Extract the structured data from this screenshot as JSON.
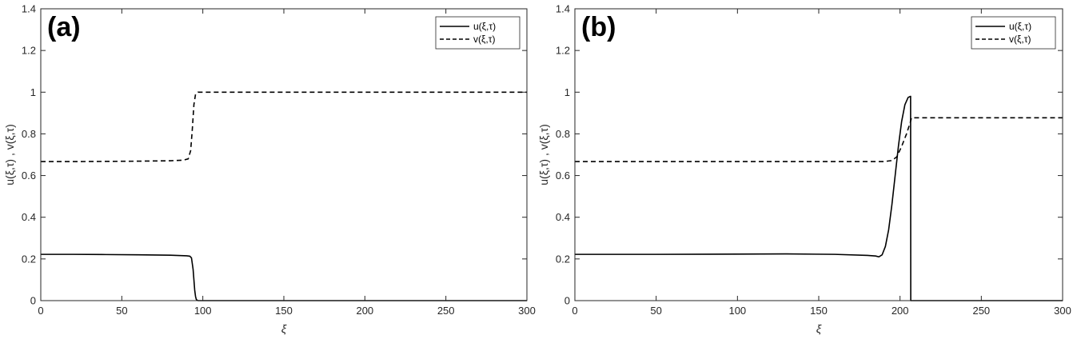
{
  "chart_data": [
    {
      "type": "line",
      "panel_label": "(a)",
      "xlabel": "ξ",
      "ylabel": "u(ξ,τ) , v(ξ,τ)",
      "xlim": [
        0,
        300
      ],
      "ylim": [
        0,
        1.4
      ],
      "xticks": [
        0,
        50,
        100,
        150,
        200,
        250,
        300
      ],
      "yticks": [
        0,
        0.2,
        0.4,
        0.6,
        0.8,
        1,
        1.2,
        1.4
      ],
      "xtick_labels": [
        "0",
        "50",
        "100",
        "150",
        "200",
        "250",
        "300"
      ],
      "ytick_labels": [
        "0",
        "0.2",
        "0.4",
        "0.6",
        "0.8",
        "1",
        "1.2",
        "1.4"
      ],
      "grid": false,
      "legend_position": "top-right",
      "series": [
        {
          "name": "u(ξ,τ)",
          "style": "solid",
          "x": [
            0,
            20,
            40,
            60,
            80,
            90,
            92,
            93,
            94,
            95,
            95.5,
            96,
            97,
            100,
            150,
            200,
            250,
            300
          ],
          "y": [
            0.222,
            0.222,
            0.221,
            0.22,
            0.218,
            0.215,
            0.213,
            0.205,
            0.15,
            0.05,
            0.02,
            0.005,
            0,
            0,
            0,
            0,
            0,
            0
          ]
        },
        {
          "name": "v(ξ,τ)",
          "style": "dashed",
          "x": [
            0,
            20,
            40,
            60,
            80,
            88,
            91,
            92.5,
            93.5,
            94.5,
            95.5,
            97,
            100,
            150,
            200,
            250,
            300
          ],
          "y": [
            0.667,
            0.667,
            0.668,
            0.669,
            0.671,
            0.674,
            0.68,
            0.72,
            0.82,
            0.94,
            0.99,
            1.0,
            1.0,
            1.0,
            1.0,
            1.0,
            1.0
          ]
        }
      ]
    },
    {
      "type": "line",
      "panel_label": "(b)",
      "xlabel": "ξ",
      "ylabel": "u(ξ,τ) , v(ξ,τ)",
      "xlim": [
        0,
        300
      ],
      "ylim": [
        0,
        1.4
      ],
      "xticks": [
        0,
        50,
        100,
        150,
        200,
        250,
        300
      ],
      "yticks": [
        0,
        0.2,
        0.4,
        0.6,
        0.8,
        1,
        1.2,
        1.4
      ],
      "xtick_labels": [
        "0",
        "50",
        "100",
        "150",
        "200",
        "250",
        "300"
      ],
      "ytick_labels": [
        "0",
        "0.2",
        "0.4",
        "0.6",
        "0.8",
        "1",
        "1.2",
        "1.4"
      ],
      "grid": false,
      "legend_position": "top-right",
      "series": [
        {
          "name": "u(ξ,τ)",
          "style": "solid",
          "x": [
            0,
            50,
            100,
            130,
            160,
            180,
            185,
            187,
            189,
            191,
            193,
            195,
            197,
            199,
            201,
            203,
            205,
            206.5,
            206.6,
            207,
            250,
            300
          ],
          "y": [
            0.222,
            0.222,
            0.223,
            0.224,
            0.222,
            0.217,
            0.214,
            0.21,
            0.22,
            0.26,
            0.34,
            0.46,
            0.6,
            0.74,
            0.86,
            0.94,
            0.975,
            0.98,
            0,
            0,
            0,
            0
          ]
        },
        {
          "name": "v(ξ,τ)",
          "style": "dashed",
          "x": [
            0,
            50,
            100,
            150,
            185,
            190,
            195,
            198,
            201,
            204,
            206.5,
            207,
            250,
            300
          ],
          "y": [
            0.667,
            0.667,
            0.667,
            0.667,
            0.667,
            0.667,
            0.672,
            0.69,
            0.74,
            0.8,
            0.86,
            0.877,
            0.877,
            0.877
          ]
        }
      ]
    }
  ]
}
